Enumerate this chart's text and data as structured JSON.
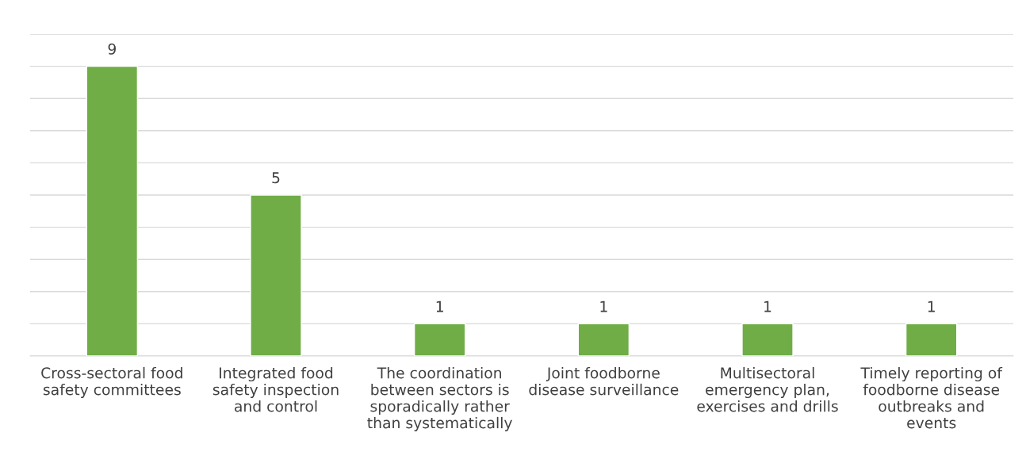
{
  "chart_data": {
    "type": "bar",
    "categories": [
      "Cross-sectoral food\nsafety committees",
      "Integrated food\nsafety inspection\nand control",
      "The coordination\nbetween sectors is\nsporadically rather\nthan systematically",
      "Joint foodborne\ndisease surveillance",
      "Multisectoral\nemergency plan,\nexercises and drills",
      "Timely reporting of\nfoodborne disease\noutbreaks and\nevents"
    ],
    "values": [
      9,
      5,
      1,
      1,
      1,
      1
    ],
    "color": "#70ad47",
    "ylim": [
      0,
      10
    ],
    "yticks": [
      0,
      1,
      2,
      3,
      4,
      5,
      6,
      7,
      8,
      9,
      10
    ],
    "tick_labels": "x",
    "grid": "y",
    "data_labels": true
  }
}
